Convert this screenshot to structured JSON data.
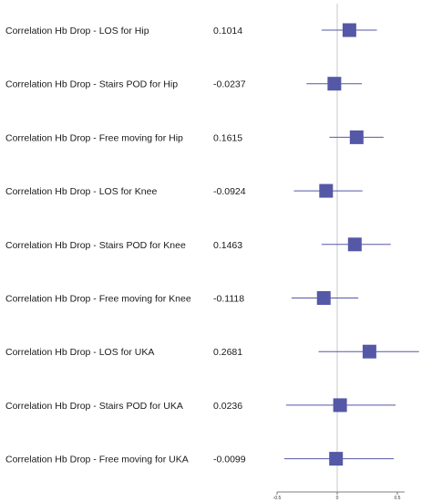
{
  "chart_data": {
    "type": "forest",
    "xlim": [
      -0.5,
      0.5
    ],
    "x_ticks": [
      -0.5,
      0,
      0.5
    ],
    "x_tick_labels": [
      "-0.5",
      "0",
      "0.5"
    ],
    "reference_line": 0,
    "marker_color": "#5558a6",
    "line_color": "#5558a6",
    "rows": [
      {
        "label": "Correlation Hb Drop - LOS for Hip",
        "value_text": "0.1014",
        "estimate": 0.1014,
        "ci_low": -0.13,
        "ci_high": 0.33
      },
      {
        "label": "Correlation Hb Drop - Stairs POD for Hip",
        "value_text": "-0.0237",
        "estimate": -0.0237,
        "ci_low": -0.255,
        "ci_high": 0.205
      },
      {
        "label": "Correlation Hb Drop - Free moving for Hip",
        "value_text": "0.1615",
        "estimate": 0.1615,
        "ci_low": -0.065,
        "ci_high": 0.385
      },
      {
        "label": "Correlation Hb Drop - LOS for Knee",
        "value_text": "-0.0924",
        "estimate": -0.0924,
        "ci_low": -0.36,
        "ci_high": 0.21
      },
      {
        "label": "Correlation Hb Drop - Stairs POD for Knee",
        "value_text": "0.1463",
        "estimate": 0.1463,
        "ci_low": -0.13,
        "ci_high": 0.445
      },
      {
        "label": "Correlation Hb Drop - Free moving for Knee",
        "value_text": "-0.1118",
        "estimate": -0.1118,
        "ci_low": -0.38,
        "ci_high": 0.175
      },
      {
        "label": "Correlation Hb Drop - LOS for UKA",
        "value_text": "0.2681",
        "estimate": 0.2681,
        "ci_low": -0.155,
        "ci_high": 0.68
      },
      {
        "label": "Correlation Hb Drop - Stairs POD for UKA",
        "value_text": "0.0236",
        "estimate": 0.0236,
        "ci_low": -0.425,
        "ci_high": 0.485
      },
      {
        "label": "Correlation Hb Drop - Free moving for UKA",
        "value_text": "-0.0099",
        "estimate": -0.0099,
        "ci_low": -0.44,
        "ci_high": 0.47
      }
    ]
  }
}
